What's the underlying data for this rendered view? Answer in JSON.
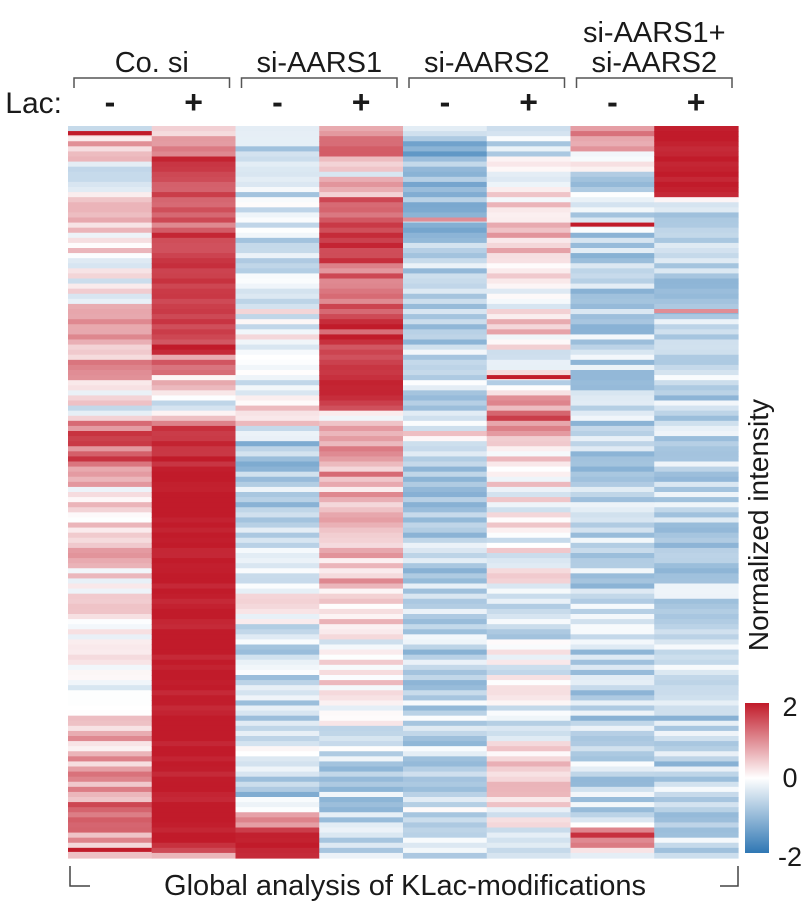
{
  "chart_data": {
    "type": "heatmap",
    "groups": [
      {
        "lines": [
          "Co. si"
        ],
        "columns": [
          "-",
          "+"
        ]
      },
      {
        "lines": [
          "si-AARS1"
        ],
        "columns": [
          "-",
          "+"
        ]
      },
      {
        "lines": [
          "si-AARS2"
        ],
        "columns": [
          "-",
          "+"
        ]
      },
      {
        "lines": [
          "si-AARS1+",
          "si-AARS2"
        ],
        "columns": [
          "-",
          "+"
        ]
      }
    ],
    "row_axis_label": "Lac:",
    "colorbar": {
      "label": "Normalized intensity",
      "min": -2,
      "max": 2,
      "ticks": [
        "2",
        "0",
        "-2"
      ],
      "colors": {
        "low": "#2f77b4",
        "mid": "#ffffff",
        "high": "#c11b2a"
      }
    },
    "footer_label": "Global analysis of KLac-modifications",
    "n_rows": 144,
    "column_profiles": [
      [
        [
          0,
          0.0
        ],
        [
          0.02,
          0.9
        ],
        [
          0.06,
          -0.3
        ],
        [
          0.11,
          0.5
        ],
        [
          0.16,
          0.2
        ],
        [
          0.22,
          0.0
        ],
        [
          0.27,
          0.6
        ],
        [
          0.33,
          0.9
        ],
        [
          0.39,
          -0.2
        ],
        [
          0.42,
          1.7
        ],
        [
          0.46,
          1.2
        ],
        [
          0.5,
          0.1
        ],
        [
          0.56,
          0.5
        ],
        [
          0.63,
          0.3
        ],
        [
          0.7,
          0.0
        ],
        [
          0.76,
          -0.5
        ],
        [
          0.82,
          0.4
        ],
        [
          0.88,
          0.8
        ],
        [
          0.92,
          1.0
        ],
        [
          0.96,
          1.3
        ],
        [
          1,
          0.3
        ]
      ],
      [
        [
          0,
          0.6
        ],
        [
          0.05,
          1.7
        ],
        [
          0.1,
          1.4
        ],
        [
          0.2,
          1.8
        ],
        [
          0.3,
          1.6
        ],
        [
          0.38,
          -0.3
        ],
        [
          0.41,
          1.8
        ],
        [
          0.5,
          2.0
        ],
        [
          0.75,
          2.0
        ],
        [
          0.98,
          2.0
        ],
        [
          1,
          1.0
        ]
      ],
      [
        [
          0,
          -0.6
        ],
        [
          0.08,
          -0.3
        ],
        [
          0.16,
          -0.6
        ],
        [
          0.23,
          -0.2
        ],
        [
          0.29,
          0.0
        ],
        [
          0.35,
          -0.5
        ],
        [
          0.4,
          0.4
        ],
        [
          0.43,
          -0.9
        ],
        [
          0.5,
          -0.6
        ],
        [
          0.6,
          -0.6
        ],
        [
          0.65,
          0.0
        ],
        [
          0.7,
          -0.5
        ],
        [
          0.8,
          -0.6
        ],
        [
          0.86,
          -0.3
        ],
        [
          0.92,
          -0.7
        ],
        [
          0.97,
          2.0
        ],
        [
          1,
          2.0
        ]
      ],
      [
        [
          0,
          0.5
        ],
        [
          0.03,
          1.6
        ],
        [
          0.06,
          -0.1
        ],
        [
          0.11,
          1.5
        ],
        [
          0.16,
          1.8
        ],
        [
          0.2,
          1.2
        ],
        [
          0.27,
          1.5
        ],
        [
          0.33,
          1.7
        ],
        [
          0.37,
          1.9
        ],
        [
          0.4,
          0.2
        ],
        [
          0.44,
          1.0
        ],
        [
          0.5,
          0.6
        ],
        [
          0.56,
          0.3
        ],
        [
          0.62,
          0.8
        ],
        [
          0.7,
          0.0
        ],
        [
          0.78,
          0.2
        ],
        [
          0.86,
          -0.5
        ],
        [
          0.93,
          -0.6
        ],
        [
          1,
          -0.6
        ]
      ],
      [
        [
          0,
          -0.7
        ],
        [
          0.06,
          -1.2
        ],
        [
          0.1,
          -1.0
        ],
        [
          0.2,
          -0.6
        ],
        [
          0.3,
          -0.6
        ],
        [
          0.4,
          -0.5
        ],
        [
          0.42,
          0.1
        ],
        [
          0.45,
          -0.7
        ],
        [
          0.6,
          -0.6
        ],
        [
          0.8,
          -0.6
        ],
        [
          0.9,
          -0.5
        ],
        [
          1,
          -0.5
        ]
      ],
      [
        [
          0,
          -0.5
        ],
        [
          0.08,
          -0.2
        ],
        [
          0.12,
          0.6
        ],
        [
          0.18,
          0.3
        ],
        [
          0.22,
          0.0
        ],
        [
          0.28,
          0.3
        ],
        [
          0.35,
          -0.3
        ],
        [
          0.39,
          1.3
        ],
        [
          0.43,
          0.9
        ],
        [
          0.46,
          0.1
        ],
        [
          0.55,
          0.0
        ],
        [
          0.63,
          -0.1
        ],
        [
          0.66,
          -0.6
        ],
        [
          0.76,
          0.0
        ],
        [
          0.82,
          -0.2
        ],
        [
          0.88,
          0.4
        ],
        [
          0.95,
          0.0
        ],
        [
          1,
          -0.4
        ]
      ],
      [
        [
          0,
          0.8
        ],
        [
          0.04,
          0.3
        ],
        [
          0.07,
          -0.5
        ],
        [
          0.15,
          -0.6
        ],
        [
          0.3,
          -0.6
        ],
        [
          0.5,
          -0.6
        ],
        [
          0.7,
          -0.6
        ],
        [
          0.85,
          -0.6
        ],
        [
          0.95,
          -0.5
        ],
        [
          0.97,
          2.0
        ],
        [
          1,
          -0.5
        ]
      ],
      [
        [
          0,
          2.0
        ],
        [
          0.09,
          2.0
        ],
        [
          0.1,
          -0.5
        ],
        [
          0.2,
          -0.6
        ],
        [
          0.4,
          -0.6
        ],
        [
          0.6,
          -0.6
        ],
        [
          0.8,
          -0.6
        ],
        [
          1,
          -0.6
        ]
      ]
    ],
    "thin_lines": [
      {
        "col": 0,
        "row": 1,
        "value": 2.0
      },
      {
        "col": 0,
        "row": 142,
        "value": 2.0
      },
      {
        "col": 4,
        "row": 18,
        "value": 1.0
      },
      {
        "col": 5,
        "row": 49,
        "value": 2.0
      },
      {
        "col": 6,
        "row": 19,
        "value": 2.0
      },
      {
        "col": 7,
        "row": 36,
        "value": 1.0
      }
    ]
  }
}
